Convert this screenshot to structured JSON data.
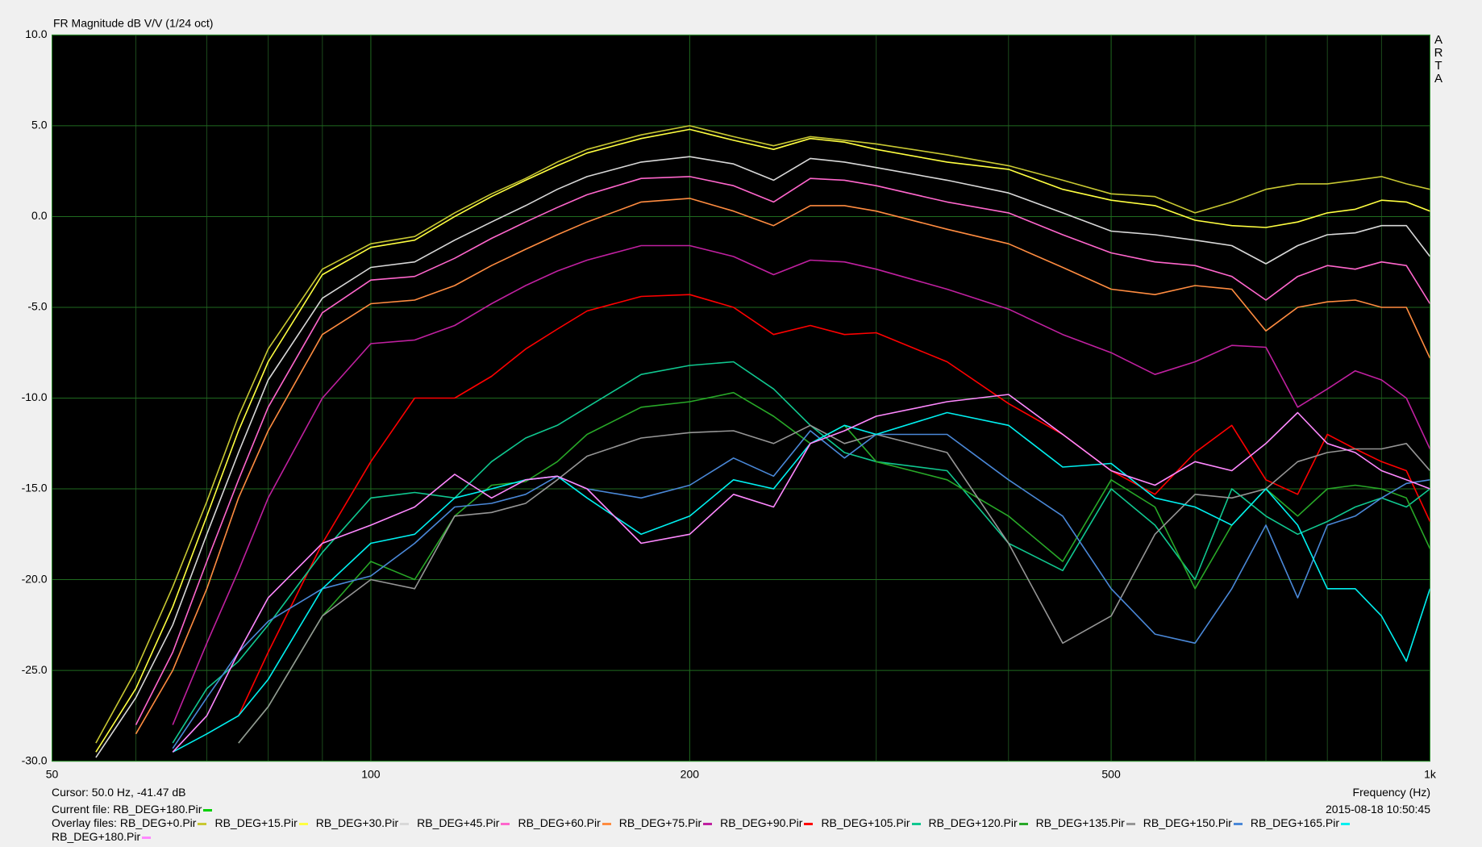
{
  "chart_data": {
    "type": "line",
    "title": "FR Magnitude dB V/V (1/24 oct)",
    "logo": "ARTA",
    "xlabel": "Frequency (Hz)",
    "cursor": "Cursor: 50.0 Hz, -41.47 dB",
    "current_file": "Current file: RB_DEG+180.Pir",
    "current_color": "#00d000",
    "timestamp": "2015-08-18  10:50:45",
    "overlay_label": "Overlay files:",
    "xscale": "log",
    "grid": true,
    "xlim": [
      50,
      1000
    ],
    "ylim": [
      -30,
      10
    ],
    "xticks": [
      50,
      100,
      200,
      500,
      {
        "value": 1000,
        "label": "1k"
      }
    ],
    "xgrid_minor": [
      60,
      70,
      80,
      90,
      300,
      400,
      600,
      700,
      800,
      900
    ],
    "yticks": [
      {
        "value": -30,
        "label": "-30.0"
      },
      {
        "value": -25,
        "label": "-25.0"
      },
      {
        "value": -20,
        "label": "-20.0"
      },
      {
        "value": -15,
        "label": "-15.0"
      },
      {
        "value": -10,
        "label": "-10.0"
      },
      {
        "value": -5,
        "label": "-5.0"
      },
      {
        "value": 0,
        "label": "0.0"
      },
      {
        "value": 5,
        "label": "5.0"
      },
      {
        "value": 10,
        "label": "10.0"
      }
    ],
    "x": [
      55,
      60,
      65,
      70,
      75,
      80,
      90,
      100,
      110,
      120,
      130,
      140,
      150,
      160,
      180,
      200,
      220,
      240,
      260,
      280,
      300,
      350,
      400,
      450,
      500,
      550,
      600,
      650,
      700,
      750,
      800,
      850,
      900,
      950,
      1000
    ],
    "series": [
      {
        "name": "RB_DEG+0.Pir",
        "color": "#c8c832",
        "values": [
          -29,
          -25,
          -20.4,
          -15.7,
          -11,
          -7.3,
          -2.9,
          -1.5,
          -1.1,
          0.2,
          1.25,
          2.1,
          3.0,
          3.7,
          4.5,
          5.0,
          4.4,
          3.9,
          4.4,
          4.2,
          4.0,
          3.4,
          2.8,
          2.0,
          1.25,
          1.1,
          0.2,
          0.8,
          1.5,
          1.8,
          1.8,
          2.0,
          2.2,
          1.8,
          1.5
        ]
      },
      {
        "name": "RB_DEG+15.Pir",
        "color": "#ffff40",
        "values": [
          -29.5,
          -26,
          -21.5,
          -16.5,
          -11.8,
          -8,
          -3.2,
          -1.7,
          -1.3,
          0,
          1.1,
          2.0,
          2.8,
          3.5,
          4.3,
          4.8,
          4.2,
          3.7,
          4.3,
          4.1,
          3.7,
          3.0,
          2.6,
          1.5,
          0.9,
          0.6,
          -0.2,
          -0.5,
          -0.6,
          -0.3,
          0.2,
          0.4,
          0.9,
          0.8,
          0.3
        ]
      },
      {
        "name": "RB_DEG+30.Pir",
        "color": "#d8d8d8",
        "values": [
          -29.8,
          -26.5,
          -22.5,
          -17.5,
          -13,
          -9,
          -4.5,
          -2.8,
          -2.5,
          -1.3,
          -0.3,
          0.6,
          1.5,
          2.2,
          3.0,
          3.3,
          2.9,
          2.0,
          3.2,
          3.0,
          2.7,
          2.0,
          1.3,
          0.2,
          -0.8,
          -1.0,
          -1.3,
          -1.6,
          -2.6,
          -1.6,
          -1.0,
          -0.9,
          -0.5,
          -0.5,
          -2.2
        ]
      },
      {
        "name": "RB_DEG+45.Pir",
        "color": "#ff66cc",
        "values": [
          null,
          -28,
          -24,
          -19,
          -14.5,
          -10.5,
          -5.3,
          -3.5,
          -3.3,
          -2.3,
          -1.2,
          -0.3,
          0.5,
          1.2,
          2.1,
          2.2,
          1.7,
          0.8,
          2.1,
          2.0,
          1.7,
          0.8,
          0.2,
          -1.0,
          -2.0,
          -2.5,
          -2.7,
          -3.3,
          -4.6,
          -3.3,
          -2.7,
          -2.9,
          -2.5,
          -2.7,
          -4.8
        ]
      },
      {
        "name": "RB_DEG+60.Pir",
        "color": "#ff8c40",
        "values": [
          null,
          -28.5,
          -25,
          -20.5,
          -15.5,
          -11.8,
          -6.5,
          -4.8,
          -4.6,
          -3.8,
          -2.7,
          -1.8,
          -1.0,
          -0.3,
          0.8,
          1.0,
          0.3,
          -0.5,
          0.6,
          0.6,
          0.3,
          -0.7,
          -1.5,
          -2.8,
          -4.0,
          -4.3,
          -3.8,
          -4.0,
          -6.3,
          -5.0,
          -4.7,
          -4.6,
          -5.0,
          -5.0,
          -7.8
        ]
      },
      {
        "name": "RB_DEG+75.Pir",
        "color": "#c020a0",
        "values": [
          null,
          null,
          -28,
          -23.5,
          -19.5,
          -15.5,
          -10,
          -7,
          -6.8,
          -6.0,
          -4.8,
          -3.8,
          -3.0,
          -2.4,
          -1.6,
          -1.6,
          -2.2,
          -3.2,
          -2.4,
          -2.5,
          -2.9,
          -4.0,
          -5.1,
          -6.5,
          -7.5,
          -8.7,
          -8.0,
          -7.1,
          -7.2,
          -10.5,
          -9.5,
          -8.5,
          -9.0,
          -10.0,
          -12.8
        ]
      },
      {
        "name": "RB_DEG+90.Pir",
        "color": "#ff0000",
        "values": [
          null,
          null,
          null,
          null,
          -27.5,
          -24,
          -18,
          -13.5,
          -10,
          -10,
          -8.8,
          -7.3,
          -6.2,
          -5.2,
          -4.4,
          -4.3,
          -5.0,
          -6.5,
          -6.0,
          -6.5,
          -6.4,
          -8.0,
          -10.3,
          -12.0,
          -14.0,
          -15.3,
          -13.0,
          -11.5,
          -14.5,
          -15.3,
          -12.0,
          -12.8,
          -13.5,
          -14.0,
          -16.8
        ]
      },
      {
        "name": "RB_DEG+105.Pir",
        "color": "#10c890",
        "values": [
          null,
          null,
          -29,
          -26,
          -24.5,
          -22.5,
          -18.5,
          -15.5,
          -15.2,
          -15.5,
          -13.5,
          -12.2,
          -11.5,
          -10.5,
          -8.7,
          -8.2,
          -8.0,
          -9.5,
          -11.5,
          -13.0,
          -13.5,
          -14.0,
          -18.0,
          -19.5,
          -15.0,
          -17.0,
          -20.0,
          -15.0,
          -16.5,
          -17.5,
          -16.8,
          -16.0,
          -15.5,
          -16.0,
          -15.0
        ]
      },
      {
        "name": "RB_DEG+120.Pir",
        "color": "#28a828",
        "values": [
          null,
          null,
          null,
          null,
          -29,
          -27,
          -22,
          -19,
          -20,
          -16.5,
          -14.8,
          -14.6,
          -13.5,
          -12.0,
          -10.5,
          -10.2,
          -9.7,
          -11.0,
          -12.5,
          -11.5,
          -13.5,
          -14.5,
          -16.5,
          -19.0,
          -14.5,
          -16.0,
          -20.5,
          -17.0,
          -15.0,
          -16.5,
          -15.0,
          -14.8,
          -15.0,
          -15.5,
          -18.3
        ]
      },
      {
        "name": "RB_DEG+135.Pir",
        "color": "#969696",
        "values": [
          null,
          null,
          null,
          null,
          -29,
          -27,
          -22,
          -20,
          -20.5,
          -16.5,
          -16.3,
          -15.8,
          -14.5,
          -13.2,
          -12.2,
          -11.9,
          -11.8,
          -12.5,
          -11.5,
          -12.5,
          -12.0,
          -13.0,
          -18.0,
          -23.5,
          -22.0,
          -17.5,
          -15.3,
          -15.5,
          -15.0,
          -13.5,
          -13.0,
          -12.8,
          -12.8,
          -12.5,
          -14.0
        ]
      },
      {
        "name": "RB_DEG+150.Pir",
        "color": "#4a88d8",
        "values": [
          null,
          null,
          -29.3,
          -26.5,
          -24,
          -22.3,
          -20.5,
          -19.8,
          -18,
          -16,
          -15.8,
          -15.3,
          -14.3,
          -15.0,
          -15.5,
          -14.8,
          -13.3,
          -14.3,
          -11.8,
          -13.3,
          -12.0,
          -12.0,
          -14.5,
          -16.5,
          -20.5,
          -23.0,
          -23.5,
          -20.5,
          -17.0,
          -21.0,
          -17.0,
          -16.5,
          -15.5,
          -14.7,
          -14.5
        ]
      },
      {
        "name": "RB_DEG+165.Pir",
        "color": "#00f0f0",
        "values": [
          null,
          null,
          -29.5,
          -28.5,
          -27.5,
          -25.5,
          -20.5,
          -18.0,
          -17.5,
          -15.5,
          -15.0,
          -14.5,
          -14.3,
          -15.5,
          -17.5,
          -16.5,
          -14.5,
          -15.0,
          -12.5,
          -11.5,
          -12.0,
          -10.8,
          -11.5,
          -13.8,
          -13.6,
          -15.5,
          -16.0,
          -17.0,
          -15.0,
          -17.0,
          -20.5,
          -20.5,
          -22.0,
          -24.5,
          -20.5
        ]
      },
      {
        "name": "RB_DEG+180.Pir",
        "color": "#ff88ff",
        "values": [
          null,
          null,
          -29.5,
          -27.5,
          -24.0,
          -21.0,
          -18.0,
          -17.0,
          -16.0,
          -14.2,
          -15.5,
          -14.5,
          -14.3,
          -15.0,
          -18.0,
          -17.5,
          -15.3,
          -16.0,
          -12.5,
          -11.8,
          -11.0,
          -10.2,
          -9.8,
          -12.0,
          -14.0,
          -14.8,
          -13.5,
          -14.0,
          -12.5,
          -10.8,
          -12.5,
          -13.0,
          -14.0,
          -14.5,
          -15.0
        ]
      }
    ]
  }
}
